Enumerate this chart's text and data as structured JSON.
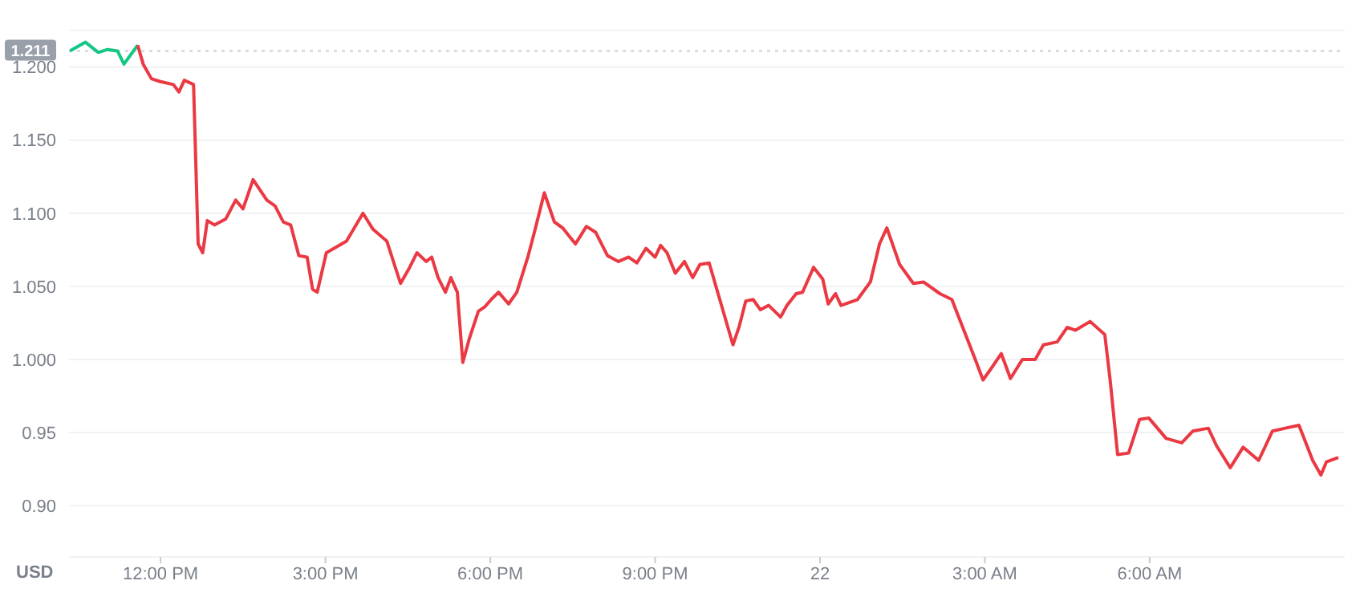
{
  "chart_data": {
    "type": "line",
    "ylabel": "USD",
    "xlim": [
      "--01-21T10:20",
      "--01-22T09:33"
    ],
    "xticks": [
      {
        "value": "--01-21T12:00",
        "label": "12:00 PM"
      },
      {
        "value": "--01-21T15:00",
        "label": "3:00 PM"
      },
      {
        "value": "--01-21T18:00",
        "label": "6:00 PM"
      },
      {
        "value": "--01-21T21:00",
        "label": "9:00 PM"
      },
      {
        "value": "--01-22",
        "label": "22"
      },
      {
        "value": "--01-22T03:00",
        "label": "3:00 AM"
      },
      {
        "value": "--01-22T06:00",
        "label": "6:00 AM"
      }
    ],
    "ylim": [
      0.865,
      1.225
    ],
    "yticks": [
      {
        "value": 0.9,
        "label": "0.90"
      },
      {
        "value": 0.95,
        "label": "0.95"
      },
      {
        "value": 1,
        "label": "1.000"
      },
      {
        "value": 1.05,
        "label": "1.050"
      },
      {
        "value": 1.1,
        "label": "1.100"
      },
      {
        "value": 1.15,
        "label": "1.150"
      },
      {
        "value": 1.2,
        "label": "1.200"
      }
    ],
    "grid": "y",
    "ref_lines": [
      {
        "axis": "y",
        "value": 1.211,
        "label": "1.211",
        "color": "#c8ccd2",
        "line_style": "dotted"
      }
    ],
    "series": [
      {
        "color": "#16c784",
        "x": [
          "--01-21T10:21",
          "--01-21T10:38",
          "--01-21T10:52",
          "--01-21T11:02",
          "--01-21T11:13",
          "--01-21T11:20",
          "--01-21T11:35"
        ],
        "values": [
          1.211,
          1.217,
          1.21,
          1.212,
          1.211,
          1.202,
          1.215
        ]
      },
      {
        "color": "#ea3943",
        "x": [
          "--01-21T11:35",
          "--01-21T11:41",
          "--01-21T11:50",
          "--01-21T12:00",
          "--01-21T12:14",
          "--01-21T12:20",
          "--01-21T12:26",
          "--01-21T12:36",
          "--01-21T12:41",
          "--01-21T12:46",
          "--01-21T12:51",
          "--01-21T12:59",
          "--01-21T13:11",
          "--01-21T13:22",
          "--01-21T13:30",
          "--01-21T13:41",
          "--01-21T13:56",
          "--01-21T14:05",
          "--01-21T14:14",
          "--01-21T14:22",
          "--01-21T14:31",
          "--01-21T14:40",
          "--01-21T14:46",
          "--01-21T14:51",
          "--01-21T15:01",
          "--01-21T15:23",
          "--01-21T15:41",
          "--01-21T15:52",
          "--01-21T16:07",
          "--01-21T16:22",
          "--01-21T16:32",
          "--01-21T16:40",
          "--01-21T16:50",
          "--01-21T16:56",
          "--01-21T17:03",
          "--01-21T17:11",
          "--01-21T17:17",
          "--01-21T17:24",
          "--01-21T17:30",
          "--01-21T17:37",
          "--01-21T17:47",
          "--01-21T17:54",
          "--01-21T18:01",
          "--01-21T18:09",
          "--01-21T18:20",
          "--01-21T18:29",
          "--01-21T18:41",
          "--01-21T18:49",
          "--01-21T18:59",
          "--01-21T19:10",
          "--01-21T19:19",
          "--01-21T19:33",
          "--01-21T19:45",
          "--01-21T19:55",
          "--01-21T20:08",
          "--01-21T20:20",
          "--01-21T20:31",
          "--01-21T20:40",
          "--01-21T20:50",
          "--01-21T21:00",
          "--01-21T21:06",
          "--01-21T21:13",
          "--01-21T21:22",
          "--01-21T21:32",
          "--01-21T21:41",
          "--01-21T21:49",
          "--01-21T21:59",
          "--01-21T22:25",
          "--01-21T22:32",
          "--01-21T22:39",
          "--01-21T22:47",
          "--01-21T22:55",
          "--01-21T23:04",
          "--01-21T23:17",
          "--01-21T23:24",
          "--01-21T23:34",
          "--01-21T23:41",
          "--01-21T23:53",
          "--01-22T00:03",
          "--01-22T00:09",
          "--01-22T00:17",
          "--01-22T00:23",
          "--01-22T00:41",
          "--01-22T00:55",
          "--01-22T01:05",
          "--01-22T01:13",
          "--01-22T01:27",
          "--01-22T01:42",
          "--01-22T01:53",
          "--01-22T02:11",
          "--01-22T02:24",
          "--01-22T02:34",
          "--01-22T02:49",
          "--01-22T02:58",
          "--01-22T03:06",
          "--01-22T03:18",
          "--01-22T03:28",
          "--01-22T03:41",
          "--01-22T03:55",
          "--01-22T04:04",
          "--01-22T04:19",
          "--01-22T04:30",
          "--01-22T04:39",
          "--01-22T04:55",
          "--01-22T05:11",
          "--01-22T05:17",
          "--01-22T05:25",
          "--01-22T05:37",
          "--01-22T05:49",
          "--01-22T05:59",
          "--01-22T06:18",
          "--01-22T06:35",
          "--01-22T06:47",
          "--01-22T07:04",
          "--01-22T07:13",
          "--01-22T07:28",
          "--01-22T07:42",
          "--01-22T07:59",
          "--01-22T08:14",
          "--01-22T08:28",
          "--01-22T08:43",
          "--01-22T08:58",
          "--01-22T09:07",
          "--01-22T09:13",
          "--01-22T09:26"
        ],
        "values": [
          1.215,
          1.202,
          1.192,
          1.19,
          1.188,
          1.183,
          1.191,
          1.188,
          1.079,
          1.073,
          1.095,
          1.092,
          1.096,
          1.109,
          1.103,
          1.123,
          1.109,
          1.105,
          1.094,
          1.092,
          1.071,
          1.07,
          1.048,
          1.046,
          1.073,
          1.081,
          1.1,
          1.089,
          1.081,
          1.052,
          1.063,
          1.073,
          1.067,
          1.07,
          1.056,
          1.046,
          1.056,
          1.046,
          0.998,
          1.014,
          1.033,
          1.036,
          1.041,
          1.046,
          1.038,
          1.046,
          1.07,
          1.089,
          1.114,
          1.094,
          1.09,
          1.079,
          1.091,
          1.087,
          1.071,
          1.067,
          1.07,
          1.066,
          1.076,
          1.07,
          1.078,
          1.073,
          1.059,
          1.067,
          1.056,
          1.065,
          1.066,
          1.01,
          1.023,
          1.04,
          1.041,
          1.034,
          1.037,
          1.029,
          1.037,
          1.045,
          1.046,
          1.063,
          1.055,
          1.038,
          1.045,
          1.037,
          1.041,
          1.053,
          1.079,
          1.09,
          1.065,
          1.052,
          1.053,
          1.045,
          1.041,
          1.025,
          1.001,
          0.986,
          0.993,
          1.004,
          0.987,
          1.0,
          1.0,
          1.01,
          1.012,
          1.022,
          1.02,
          1.026,
          1.017,
          0.985,
          0.935,
          0.936,
          0.959,
          0.96,
          0.946,
          0.943,
          0.951,
          0.953,
          0.941,
          0.926,
          0.94,
          0.931,
          0.951,
          0.953,
          0.955,
          0.931,
          0.921,
          0.93,
          0.933
        ]
      }
    ]
  }
}
